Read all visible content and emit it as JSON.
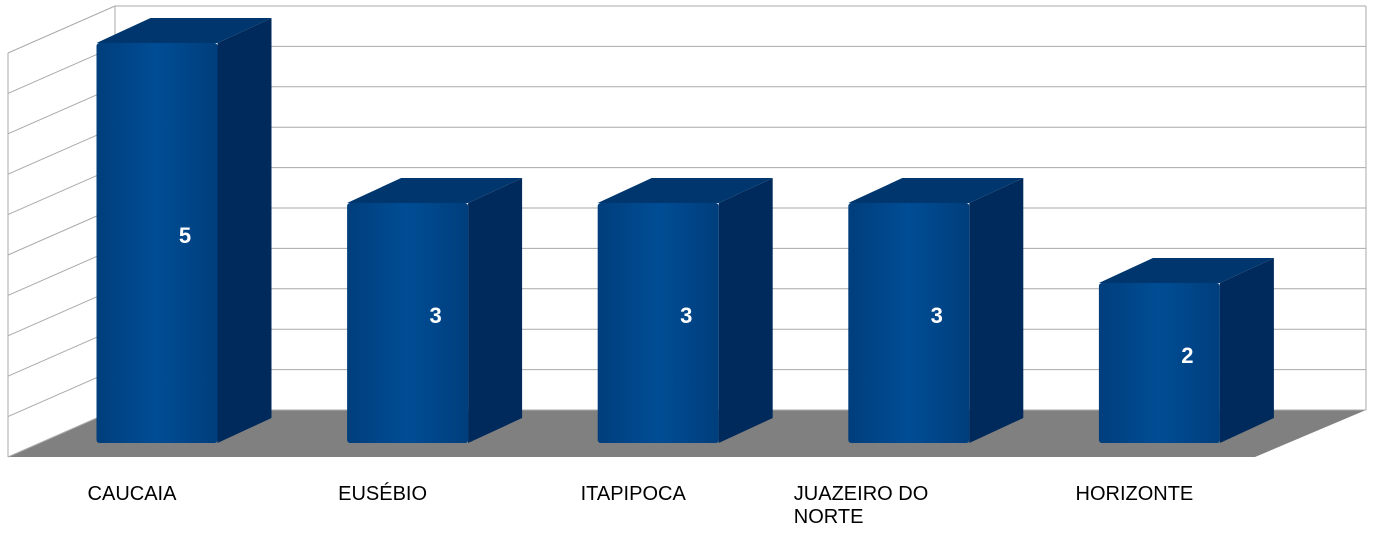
{
  "chart_data": {
    "type": "bar3d",
    "categories": [
      "CAUCAIA",
      "EUSÉBIO",
      "ITAPIPOCA",
      "JUAZEIRO DO NORTE",
      "HORIZONTE"
    ],
    "values": [
      5,
      3,
      3,
      3,
      2
    ],
    "color": "#004a8f",
    "ylim": [
      0,
      5
    ],
    "yticks": [
      0,
      0.5,
      1,
      1.5,
      2,
      2.5,
      3,
      3.5,
      4,
      4.5,
      5
    ],
    "grid": true
  }
}
